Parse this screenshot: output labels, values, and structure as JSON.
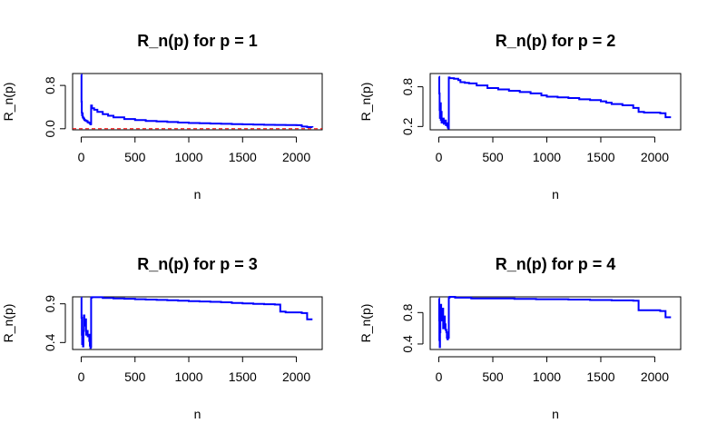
{
  "chart_data": [
    {
      "type": "line",
      "title": "R_n(p) for p = 1",
      "xlabel": "n",
      "ylabel": "R_n(p)",
      "xlim": [
        -80,
        2240
      ],
      "ylim": [
        -0.02,
        1.02
      ],
      "xticks": [
        0,
        500,
        1000,
        1500,
        2000
      ],
      "yticks": [
        0.0,
        0.8
      ],
      "ytick_labels": [
        "0.0",
        "0.8"
      ],
      "reference_line": {
        "y": 0,
        "color": "#ff0000",
        "style": "dashed"
      },
      "series": [
        {
          "color": "#0000ff",
          "x": [
            1,
            3,
            5,
            8,
            10,
            14,
            18,
            25,
            30,
            40,
            50,
            60,
            70,
            80,
            85,
            90,
            92,
            100,
            120,
            150,
            200,
            250,
            300,
            400,
            500,
            600,
            700,
            800,
            900,
            1000,
            1100,
            1200,
            1300,
            1400,
            1500,
            1600,
            1700,
            1800,
            1900,
            2000,
            2050,
            2100,
            2150
          ],
          "y": [
            1.0,
            0.5,
            0.3,
            0.25,
            0.28,
            0.22,
            0.2,
            0.18,
            0.16,
            0.15,
            0.14,
            0.12,
            0.11,
            0.1,
            0.08,
            0.09,
            0.43,
            0.38,
            0.35,
            0.31,
            0.27,
            0.24,
            0.21,
            0.18,
            0.16,
            0.145,
            0.135,
            0.125,
            0.115,
            0.105,
            0.1,
            0.095,
            0.09,
            0.085,
            0.08,
            0.075,
            0.072,
            0.07,
            0.068,
            0.065,
            0.04,
            0.03,
            0.025
          ]
        }
      ]
    },
    {
      "type": "line",
      "title": "R_n(p) for p = 2",
      "xlabel": "n",
      "ylabel": "R_n(p)",
      "xlim": [
        -80,
        2240
      ],
      "ylim": [
        0.15,
        1.0
      ],
      "xticks": [
        0,
        500,
        1000,
        1500,
        2000
      ],
      "yticks": [
        0.2,
        0.8
      ],
      "ytick_labels": [
        "0.2",
        "0.8"
      ],
      "series": [
        {
          "color": "#0000ff",
          "x": [
            1,
            4,
            7,
            10,
            14,
            18,
            22,
            26,
            30,
            35,
            45,
            55,
            65,
            75,
            80,
            85,
            90,
            92,
            100,
            140,
            180,
            200,
            240,
            280,
            350,
            450,
            550,
            650,
            750,
            850,
            950,
            1000,
            1100,
            1200,
            1300,
            1400,
            1500,
            1550,
            1600,
            1700,
            1800,
            1850,
            1900,
            2000,
            2050,
            2100,
            2150
          ],
          "y": [
            0.95,
            0.7,
            0.45,
            0.33,
            0.55,
            0.3,
            0.42,
            0.26,
            0.3,
            0.32,
            0.24,
            0.29,
            0.22,
            0.25,
            0.2,
            0.18,
            0.17,
            0.94,
            0.93,
            0.92,
            0.9,
            0.87,
            0.86,
            0.85,
            0.82,
            0.78,
            0.76,
            0.74,
            0.72,
            0.7,
            0.67,
            0.65,
            0.64,
            0.63,
            0.61,
            0.6,
            0.58,
            0.56,
            0.54,
            0.52,
            0.48,
            0.42,
            0.41,
            0.41,
            0.4,
            0.34,
            0.34
          ]
        }
      ]
    },
    {
      "type": "line",
      "title": "R_n(p) for p = 3",
      "xlabel": "n",
      "ylabel": "R_n(p)",
      "xlim": [
        -80,
        2240
      ],
      "ylim": [
        0.31,
        0.99
      ],
      "xticks": [
        0,
        500,
        1000,
        1500,
        2000
      ],
      "yticks": [
        0.4,
        0.9
      ],
      "ytick_labels": [
        "0.4",
        "0.9"
      ],
      "series": [
        {
          "color": "#0000ff",
          "x": [
            1,
            3,
            6,
            9,
            12,
            16,
            20,
            25,
            30,
            38,
            45,
            52,
            60,
            70,
            75,
            80,
            85,
            88,
            92,
            100,
            150,
            200,
            300,
            400,
            500,
            600,
            700,
            800,
            900,
            1000,
            1100,
            1200,
            1300,
            1400,
            1500,
            1600,
            1700,
            1800,
            1850,
            1900,
            2000,
            2050,
            2100,
            2150
          ],
          "y": [
            0.98,
            0.72,
            0.5,
            0.38,
            0.45,
            0.35,
            0.55,
            0.75,
            0.62,
            0.7,
            0.5,
            0.55,
            0.48,
            0.5,
            0.42,
            0.36,
            0.33,
            0.34,
            0.98,
            0.985,
            0.985,
            0.975,
            0.97,
            0.965,
            0.96,
            0.955,
            0.95,
            0.945,
            0.94,
            0.935,
            0.93,
            0.925,
            0.92,
            0.91,
            0.905,
            0.9,
            0.895,
            0.89,
            0.8,
            0.79,
            0.79,
            0.78,
            0.7,
            0.7
          ]
        }
      ]
    },
    {
      "type": "line",
      "title": "R_n(p) for p = 4",
      "xlabel": "n",
      "ylabel": "R_n(p)",
      "xlim": [
        -80,
        2240
      ],
      "ylim": [
        0.33,
        1.0
      ],
      "xticks": [
        0,
        500,
        1000,
        1500,
        2000
      ],
      "yticks": [
        0.4,
        0.8
      ],
      "ytick_labels": [
        "0.4",
        "0.8"
      ],
      "series": [
        {
          "color": "#0000ff",
          "x": [
            1,
            3,
            5,
            8,
            11,
            14,
            18,
            22,
            26,
            32,
            40,
            48,
            55,
            62,
            70,
            75,
            80,
            85,
            92,
            100,
            150,
            200,
            300,
            500,
            700,
            900,
            1000,
            1200,
            1400,
            1600,
            1800,
            1850,
            1900,
            2000,
            2050,
            2100,
            2150
          ],
          "y": [
            0.98,
            0.7,
            0.45,
            0.36,
            0.55,
            0.75,
            0.9,
            0.8,
            0.7,
            0.85,
            0.6,
            0.75,
            0.65,
            0.58,
            0.55,
            0.48,
            0.46,
            0.48,
            0.99,
            1.0,
            0.99,
            0.99,
            0.98,
            0.98,
            0.975,
            0.97,
            0.97,
            0.965,
            0.96,
            0.955,
            0.95,
            0.83,
            0.83,
            0.83,
            0.82,
            0.74,
            0.74
          ]
        }
      ]
    }
  ]
}
